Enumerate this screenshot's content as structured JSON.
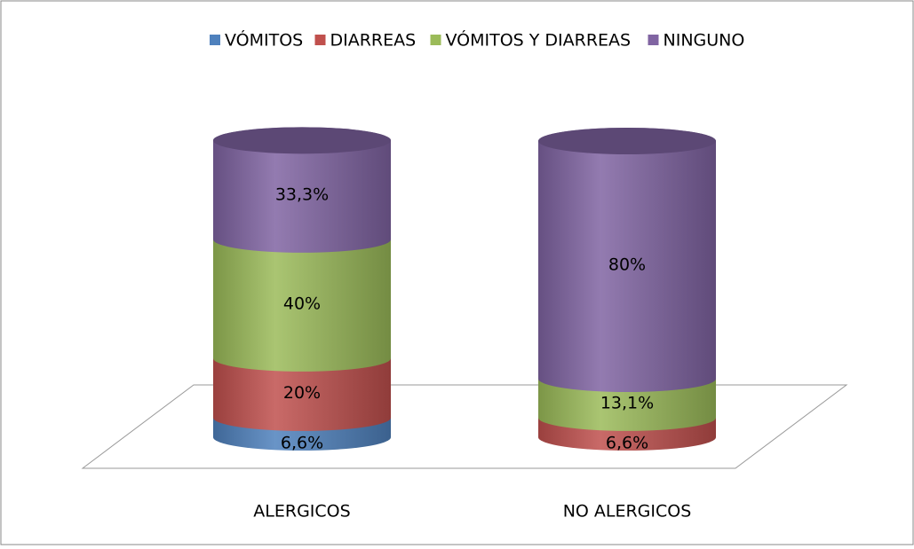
{
  "chart_data": {
    "type": "stacked_cylinder",
    "categories": [
      "ALERGICOS",
      "NO ALERGICOS"
    ],
    "series": [
      {
        "name": "VÓMITOS",
        "color": "#4f81bd",
        "values": [
          6.6,
          0
        ],
        "value_labels": [
          "6,6%",
          null
        ]
      },
      {
        "name": "DIARREAS",
        "color": "#c0504d",
        "values": [
          20,
          6.6
        ],
        "value_labels": [
          "20%",
          "6,6%"
        ]
      },
      {
        "name": "VÓMITOS Y DIARREAS",
        "color": "#9bbb59",
        "values": [
          40,
          13.1
        ],
        "value_labels": [
          "40%",
          "13,1%"
        ]
      },
      {
        "name": "NINGUNO",
        "color": "#8064a2",
        "values": [
          33.3,
          80
        ],
        "value_labels": [
          "33,3%",
          "80%"
        ]
      }
    ],
    "legend": "top"
  }
}
